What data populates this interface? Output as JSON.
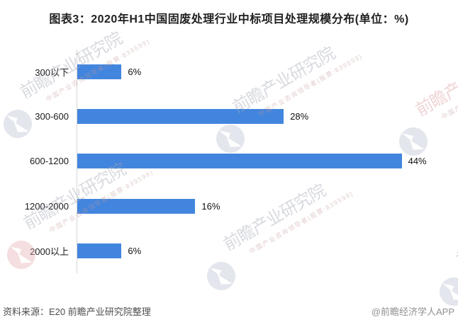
{
  "title": "图表3：2020年H1中国固废处理行业中标项目处理规模分布(单位：%)",
  "chart_data": {
    "type": "bar",
    "orientation": "horizontal",
    "title": "图表3：2020年H1中国固废处理行业中标项目处理规模分布(单位：%)",
    "categories": [
      "300以下",
      "300-600",
      "600-1200",
      "1200-2000",
      "2000以上"
    ],
    "values": [
      6,
      28,
      44,
      16,
      6
    ],
    "value_labels": [
      "6%",
      "28%",
      "44%",
      "16%",
      "6%"
    ],
    "unit": "%",
    "xlim": [
      0,
      50
    ],
    "grid": false,
    "legend": false,
    "bar_color": "#4285de",
    "axis_color": "#d6d6d6"
  },
  "footer": {
    "source": "资料来源：E20 前瞻产业研究院整理",
    "credit": "@前瞻经济学人APP"
  },
  "watermark": {
    "text": "前瞻产业研究院",
    "subtext": "中国产业咨询领导者(股票:839599)"
  },
  "colors": {
    "title_text": "#212121",
    "label_text": "#1a1a1a",
    "source_text": "#4d4d4d",
    "credit_text": "#909090"
  }
}
